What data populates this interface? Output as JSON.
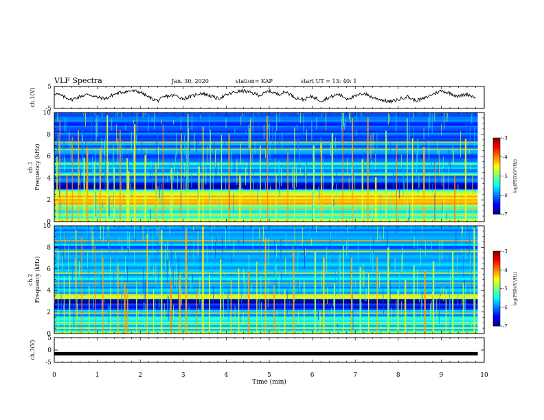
{
  "header": {
    "title": "VLF Spectra",
    "date": "Jan. 30, 2020",
    "station": "station= KAP",
    "start": "start  UT =   13: 40: 1"
  },
  "chart_data": [
    {
      "type": "line",
      "panel": "ch1-waveform",
      "ylabel": "ch.1(V)",
      "yticks": [
        "5",
        "-5"
      ],
      "ylim": [
        -5,
        5
      ],
      "xlim": [
        0,
        9.85
      ],
      "color": "#000000",
      "series": [
        {
          "x": [
            0,
            0.2,
            0.4,
            0.6,
            0.8,
            1.0,
            1.2,
            1.4,
            1.6,
            1.8,
            2.0,
            2.2,
            2.4,
            2.6,
            2.8,
            3.0,
            3.2,
            3.4,
            3.6,
            3.8,
            4.0,
            4.2,
            4.4,
            4.6,
            4.8,
            5.0,
            5.2,
            5.4,
            5.6,
            5.8,
            6.0,
            6.2,
            6.4,
            6.6,
            6.8,
            7.0,
            7.2,
            7.4,
            7.6,
            7.8,
            8.0,
            8.2,
            8.4,
            8.6,
            8.8,
            9.0,
            9.2,
            9.4,
            9.6,
            9.8
          ],
          "values": [
            2.0,
            0.5,
            -1.0,
            0.5,
            1.5,
            0.0,
            -0.5,
            1.5,
            2.5,
            3.0,
            2.5,
            0.0,
            -1.5,
            0.5,
            1.0,
            -0.5,
            0.5,
            2.0,
            1.0,
            -0.5,
            1.0,
            2.5,
            3.0,
            2.0,
            1.0,
            3.0,
            1.5,
            2.5,
            0.0,
            -1.0,
            0.5,
            -1.5,
            0.0,
            1.5,
            -0.5,
            0.5,
            2.0,
            0.0,
            -1.0,
            -2.0,
            -1.0,
            0.5,
            -1.5,
            -0.5,
            1.5,
            3.0,
            2.0,
            0.5,
            1.5,
            0.0
          ]
        }
      ]
    },
    {
      "type": "heatmap",
      "panel": "ch1-spectrogram",
      "ylabel": "ch.1 Frequency (kHz)",
      "yticks": [
        "0",
        "2",
        "4",
        "6",
        "8",
        "10"
      ],
      "ylim": [
        0,
        10
      ],
      "xlim": [
        0,
        9.85
      ],
      "colorbar": {
        "label": "log(PSD)(V²/Hz)",
        "ticks": [
          "-3",
          "-4",
          "-5",
          "-6",
          "-7"
        ],
        "range": [
          -7,
          -3
        ]
      },
      "bands_khz": [
        {
          "from": 0.0,
          "to": 0.3,
          "level": -5.0
        },
        {
          "from": 0.3,
          "to": 1.2,
          "level": -5.3
        },
        {
          "from": 1.2,
          "to": 1.6,
          "level": -5.0
        },
        {
          "from": 1.6,
          "to": 2.4,
          "level": -4.4
        },
        {
          "from": 2.4,
          "to": 2.9,
          "level": -4.7
        },
        {
          "from": 2.9,
          "to": 3.0,
          "level": -6.0
        },
        {
          "from": 3.0,
          "to": 3.6,
          "level": -6.8
        },
        {
          "from": 3.6,
          "to": 4.2,
          "level": -6.2
        },
        {
          "from": 4.2,
          "to": 5.5,
          "level": -5.8
        },
        {
          "from": 5.5,
          "to": 7.5,
          "level": -6.0
        },
        {
          "from": 7.5,
          "to": 10.0,
          "level": -6.2
        }
      ],
      "bright_lines_khz": [
        0.6,
        1.1,
        1.9,
        2.2,
        2.6,
        4.3,
        5.3,
        6.6,
        7.3
      ],
      "impulse_times_min": [
        0.05,
        0.12,
        0.28,
        0.41,
        0.55,
        0.68,
        0.75,
        0.92,
        1.05,
        1.22,
        1.38,
        1.52,
        1.68,
        1.71,
        1.85,
        2.1,
        2.35,
        2.52,
        2.72,
        2.95,
        3.1,
        3.35,
        3.45,
        3.62,
        3.88,
        4.05,
        4.3,
        4.55,
        4.78,
        4.95,
        5.15,
        5.42,
        5.58,
        5.84,
        6.02,
        6.2,
        6.45,
        6.7,
        6.92,
        7.15,
        7.28,
        7.46,
        7.7,
        7.95,
        8.2,
        8.32,
        8.58,
        8.85,
        9.05,
        9.3,
        9.55,
        9.72
      ]
    },
    {
      "type": "heatmap",
      "panel": "ch2-spectrogram",
      "ylabel": "ch.2 Frequency (kHz)",
      "yticks": [
        "0",
        "2",
        "4",
        "6",
        "8",
        "10"
      ],
      "ylim": [
        0,
        10
      ],
      "xlim": [
        0,
        9.85
      ],
      "colorbar": {
        "label": "log(PSD)(V²/Hz)",
        "ticks": [
          "-3",
          "-4",
          "-5",
          "-6",
          "-7"
        ],
        "range": [
          -7,
          -3
        ]
      },
      "bands_khz": [
        {
          "from": 0.0,
          "to": 0.3,
          "level": -5.2
        },
        {
          "from": 0.3,
          "to": 1.6,
          "level": -5.6
        },
        {
          "from": 1.6,
          "to": 2.2,
          "level": -5.8
        },
        {
          "from": 2.2,
          "to": 2.8,
          "level": -6.5
        },
        {
          "from": 2.8,
          "to": 3.2,
          "level": -6.9
        },
        {
          "from": 3.2,
          "to": 3.7,
          "level": -4.8
        },
        {
          "from": 3.7,
          "to": 5.0,
          "level": -5.9
        },
        {
          "from": 5.0,
          "to": 7.0,
          "level": -5.7
        },
        {
          "from": 7.0,
          "to": 10.0,
          "level": -5.9
        }
      ],
      "bright_lines_khz": [
        0.5,
        1.0,
        1.9,
        3.4,
        3.6,
        4.7,
        5.6,
        7.6,
        8.6
      ],
      "impulse_times_min": [
        0.08,
        0.22,
        0.35,
        0.5,
        0.63,
        0.8,
        0.95,
        1.12,
        1.3,
        1.47,
        1.62,
        1.69,
        1.9,
        2.15,
        2.3,
        2.48,
        2.7,
        2.9,
        3.05,
        3.3,
        3.44,
        3.6,
        3.85,
        4.1,
        4.28,
        4.5,
        4.7,
        4.9,
        5.1,
        5.35,
        5.55,
        5.8,
        6.05,
        6.25,
        6.5,
        6.72,
        6.9,
        7.1,
        7.3,
        7.5,
        7.75,
        7.98,
        8.15,
        8.35,
        8.6,
        8.8,
        9.1,
        9.25,
        9.5,
        9.75
      ]
    },
    {
      "type": "line",
      "panel": "ch3-waveform",
      "ylabel": "ch.3(V)",
      "yticks": [
        "5",
        "0",
        "-5"
      ],
      "ylim": [
        -5,
        5
      ],
      "xlim": [
        0,
        9.85
      ],
      "xlabel": "Time  (min)",
      "xticks": [
        "0",
        "1",
        "2",
        "3",
        "4",
        "5",
        "6",
        "7",
        "8",
        "9",
        "10"
      ],
      "color": "#000000",
      "series": [
        {
          "x": [
            0,
            9.85
          ],
          "values": [
            -1.5,
            -1.5
          ]
        }
      ]
    }
  ]
}
